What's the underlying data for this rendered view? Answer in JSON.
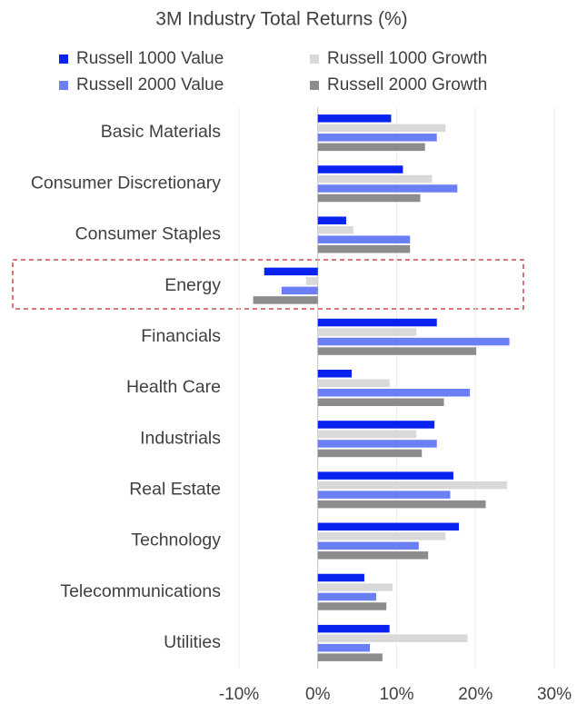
{
  "chart_data": {
    "type": "bar",
    "orientation": "horizontal",
    "title": "3M Industry Total Returns (%)",
    "categories": [
      "Basic Materials",
      "Consumer Discretionary",
      "Consumer Staples",
      "Energy",
      "Financials",
      "Health Care",
      "Industrials",
      "Real Estate",
      "Technology",
      "Telecommunications",
      "Utilities"
    ],
    "series": [
      {
        "name": "Russell 1000 Value",
        "color": "#0a22f0",
        "values": [
          9.3,
          10.8,
          3.6,
          -6.8,
          15.1,
          4.3,
          14.8,
          17.2,
          17.9,
          5.9,
          9.1
        ]
      },
      {
        "name": "Russell 1000 Growth",
        "color": "#d9d9d9",
        "values": [
          16.2,
          14.5,
          4.5,
          -1.5,
          12.5,
          9.1,
          12.5,
          24.0,
          16.2,
          9.5,
          19.0
        ]
      },
      {
        "name": "Russell 2000 Value",
        "color": "#6b7ff5",
        "values": [
          15.1,
          17.7,
          11.7,
          -4.6,
          24.3,
          19.3,
          15.1,
          16.8,
          12.8,
          7.4,
          6.6
        ]
      },
      {
        "name": "Russell 2000 Growth",
        "color": "#8c8c8c",
        "values": [
          13.6,
          13.0,
          11.7,
          -8.2,
          20.1,
          16.0,
          13.2,
          21.3,
          14.0,
          8.7,
          8.2
        ]
      }
    ],
    "xlim": [
      -10,
      30
    ],
    "xticks": [
      {
        "value": -10,
        "label": "-10%"
      },
      {
        "value": 0,
        "label": "0%"
      },
      {
        "value": 10,
        "label": "10%"
      },
      {
        "value": 20,
        "label": "20%"
      },
      {
        "value": 30,
        "label": "30%"
      }
    ],
    "grid": true,
    "legend": "top"
  }
}
